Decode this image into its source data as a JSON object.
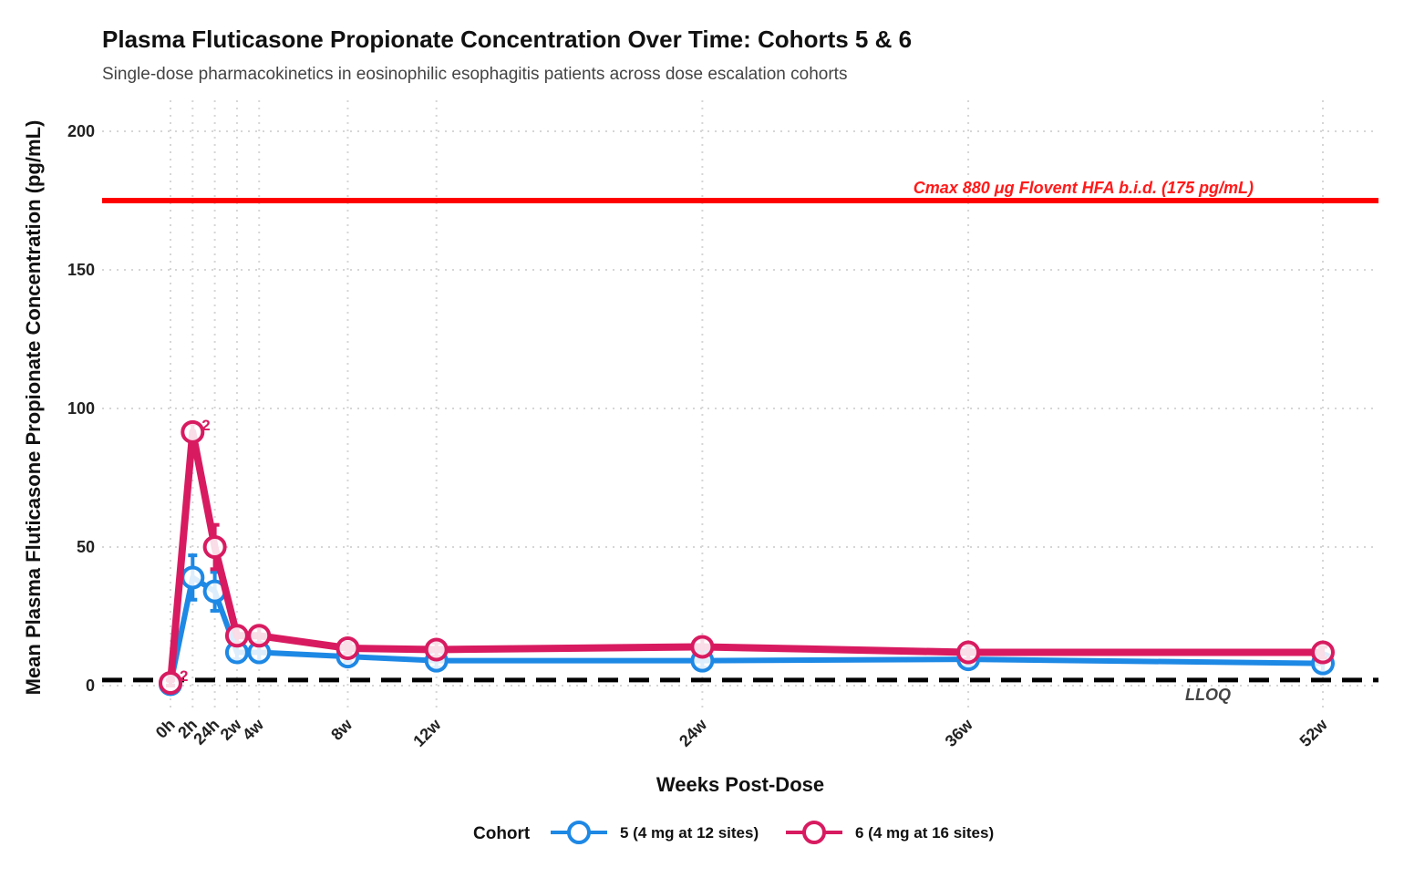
{
  "title": "Plasma Fluticasone Propionate Concentration Over Time: Cohorts 5 & 6",
  "subtitle": "Single-dose pharmacokinetics in eosinophilic esophagitis patients across dose escalation cohorts",
  "chart_data": {
    "type": "line",
    "title": "Plasma Fluticasone Propionate Concentration Over Time: Cohorts 5 & 6",
    "subtitle": "Single-dose pharmacokinetics in eosinophilic esophagitis patients across dose escalation cohorts",
    "xlabel": "Weeks Post-Dose",
    "ylabel": "Mean Plasma Fluticasone Propionate Concentration (pg/mL)",
    "categories": [
      "0h",
      "2h",
      "24h",
      "2w",
      "4w",
      "8w",
      "12w",
      "24w",
      "36w",
      "52w"
    ],
    "x_weeks": [
      0,
      1,
      2,
      3,
      4,
      8,
      12,
      24,
      36,
      52
    ],
    "ylim": [
      0,
      210
    ],
    "yticks": [
      0,
      50,
      100,
      150,
      200
    ],
    "grid": true,
    "legend": {
      "title": "Cohort",
      "position": "bottom"
    },
    "series": [
      {
        "name": "5 (4 mg at 12 sites)",
        "color": "#1e88e5",
        "values": [
          0.5,
          39,
          34,
          12,
          12,
          10.5,
          9,
          9,
          9.5,
          8
        ],
        "error": [
          0.5,
          8,
          7,
          2.5,
          3,
          2,
          2.5,
          2.5,
          2.5,
          3
        ]
      },
      {
        "name": "6 (4 mg at 16 sites)",
        "color": "#d81b60",
        "values": [
          1,
          91.5,
          50,
          18,
          18,
          13.5,
          13,
          14,
          12,
          12
        ],
        "error": [
          1,
          3,
          8,
          3,
          3,
          2,
          2.5,
          3,
          2.5,
          2
        ]
      }
    ],
    "reference_lines": [
      {
        "label": "Cmax 880 μg Flovent HFA b.i.d. (175 pg/mL)",
        "value": 175,
        "color": "#ff0000",
        "style": "solid"
      },
      {
        "label": "LLOQ",
        "value": 2,
        "color": "#000000",
        "style": "dashed"
      }
    ],
    "annotations": [
      {
        "series": "6 (4 mg at 16 sites)",
        "category": "0h",
        "text": "2"
      },
      {
        "series": "6 (4 mg at 16 sites)",
        "category": "2h",
        "text": "2"
      }
    ]
  }
}
